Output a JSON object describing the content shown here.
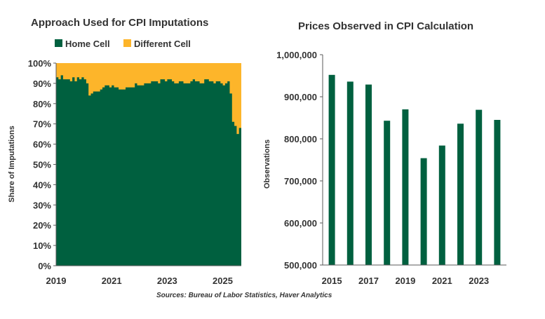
{
  "colors": {
    "home_cell": "#00603f",
    "different_cell": "#fdb52a",
    "bar": "#00603f",
    "axis": "#595959",
    "text": "#333333"
  },
  "source": "Sources: Bureau of Labor Statistics, Haver Analytics",
  "chart_data": [
    {
      "type": "area",
      "stacked": true,
      "title": "Approach Used for CPI Imputations",
      "ylabel": "Share of Imputations",
      "xlabel": "",
      "ylim": [
        0,
        100
      ],
      "yticks": [
        "0%",
        "10%",
        "20%",
        "30%",
        "40%",
        "50%",
        "60%",
        "70%",
        "80%",
        "90%",
        "100%"
      ],
      "xticks": [
        "2019",
        "2021",
        "2023",
        "2025"
      ],
      "xrange": [
        2019.0,
        2025.67
      ],
      "legend_position": "top",
      "grid": false,
      "series": [
        {
          "name": "Home Cell",
          "values": [
            93,
            92,
            94,
            92,
            92,
            92,
            91,
            93,
            91,
            93,
            92,
            93,
            92,
            90,
            84,
            85,
            86,
            86,
            86,
            87,
            88,
            89,
            89,
            88,
            89,
            88,
            88,
            87,
            87,
            87,
            88,
            88,
            88,
            88,
            90,
            89,
            89,
            89,
            90,
            90,
            90,
            91,
            91,
            91,
            90,
            92,
            92,
            91,
            92,
            92,
            91,
            90,
            90,
            91,
            91,
            90,
            90,
            90,
            91,
            92,
            91,
            91,
            90,
            90,
            92,
            92,
            91,
            91,
            90,
            91,
            91,
            90,
            89,
            90,
            91,
            85,
            71,
            69,
            65,
            68
          ]
        },
        {
          "name": "Different Cell",
          "values": [
            7,
            8,
            6,
            8,
            8,
            8,
            9,
            7,
            9,
            7,
            8,
            7,
            8,
            10,
            16,
            15,
            14,
            14,
            14,
            13,
            12,
            11,
            11,
            12,
            11,
            12,
            12,
            13,
            13,
            13,
            12,
            12,
            12,
            12,
            10,
            11,
            11,
            11,
            10,
            10,
            10,
            9,
            9,
            9,
            10,
            8,
            8,
            9,
            8,
            8,
            9,
            10,
            10,
            9,
            9,
            10,
            10,
            10,
            9,
            8,
            9,
            9,
            10,
            10,
            8,
            8,
            9,
            9,
            10,
            9,
            9,
            10,
            11,
            10,
            9,
            15,
            29,
            31,
            35,
            32
          ]
        }
      ]
    },
    {
      "type": "bar",
      "title": "Prices Observed in CPI Calculation",
      "ylabel": "Observations",
      "xlabel": "",
      "ylim": [
        500000,
        1000000
      ],
      "yticks": [
        "500,000",
        "600,000",
        "700,000",
        "800,000",
        "900,000",
        "1,000,000"
      ],
      "categories": [
        "2015",
        "2016",
        "2017",
        "2018",
        "2019",
        "2020",
        "2021",
        "2022",
        "2023",
        "2024"
      ],
      "xtick_labels": [
        "2015",
        "",
        "2017",
        "",
        "2019",
        "",
        "2021",
        "",
        "2023",
        ""
      ],
      "values": [
        952000,
        936000,
        929000,
        843000,
        870000,
        754000,
        784000,
        836000,
        869000,
        845000
      ],
      "grid": false
    }
  ]
}
